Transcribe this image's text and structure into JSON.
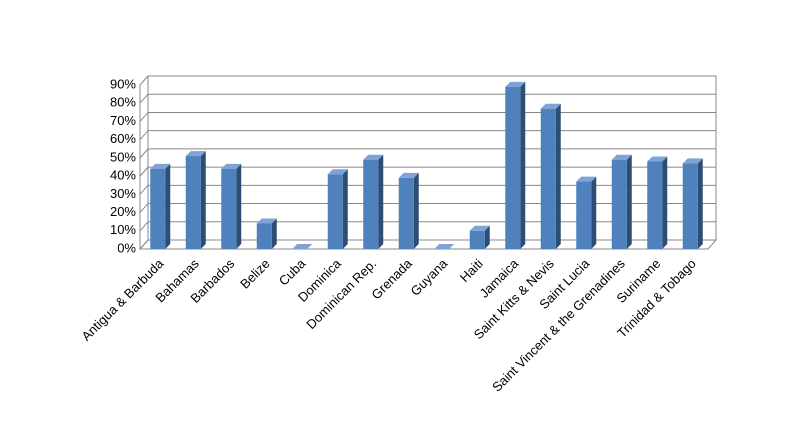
{
  "chart_data": {
    "type": "bar",
    "categories": [
      "Antigua & Barbuda",
      "Bahamas",
      "Barbados",
      "Belize",
      "Cuba",
      "Dominica",
      "Dominican Rep.",
      "Grenada",
      "Guyana",
      "Haiti",
      "Jamaica",
      "Saint Kitts & Nevis",
      "Saint Lucia",
      "Saint Vincent & the Grenadines",
      "Suriname",
      "Trinidad  & Tobago"
    ],
    "values": [
      44,
      51,
      44,
      14,
      0,
      41,
      49,
      39,
      0,
      10,
      89,
      77,
      37,
      49,
      48,
      47
    ],
    "color": "#4f81bd",
    "ylim": [
      0,
      90
    ],
    "yticks": [
      {
        "value": 0,
        "label": "0%"
      },
      {
        "value": 10,
        "label": "10%"
      },
      {
        "value": 20,
        "label": "20%"
      },
      {
        "value": 30,
        "label": "30%"
      },
      {
        "value": 40,
        "label": "40%"
      },
      {
        "value": 50,
        "label": "50%"
      },
      {
        "value": 60,
        "label": "60%"
      },
      {
        "value": 70,
        "label": "70%"
      },
      {
        "value": 80,
        "label": "80%"
      },
      {
        "value": 90,
        "label": "90%"
      }
    ],
    "grid": true
  }
}
